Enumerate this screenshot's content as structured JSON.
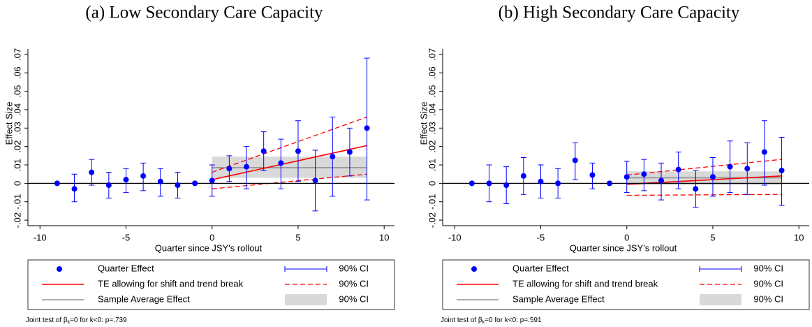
{
  "chart_data": [
    {
      "type": "scatter",
      "title": "(a) Low Secondary Care Capacity",
      "xlabel": "Quarter since JSY's rollout",
      "ylabel": "Effect Size",
      "xlim": [
        -10.7,
        10.6
      ],
      "ylim": [
        -0.023,
        0.073
      ],
      "xticks": [
        -10,
        -5,
        0,
        5,
        10
      ],
      "yticks": [
        {
          "value": -0.02,
          "label": "-.02"
        },
        {
          "value": -0.01,
          "label": "-.01"
        },
        0,
        {
          "value": 0.01,
          "label": ".01"
        },
        {
          "value": 0.02,
          "label": ".02"
        },
        {
          "value": 0.03,
          "label": ".03"
        },
        {
          "value": 0.04,
          "label": ".04"
        },
        {
          "value": 0.05,
          "label": ".05"
        },
        {
          "value": 0.06,
          "label": ".06"
        },
        {
          "value": 0.07,
          "label": ".07"
        }
      ],
      "hline": 0,
      "series": [
        {
          "name": "Quarter Effect",
          "kind": "points",
          "color": "#0000ff",
          "x": [
            -9,
            -8,
            -7,
            -6,
            -5,
            -4,
            -3,
            -2,
            -1,
            0,
            1,
            2,
            3,
            4,
            5,
            6,
            7,
            8,
            9
          ],
          "values": [
            0,
            -0.003,
            0.006,
            -0.001,
            0.002,
            0.004,
            0.001,
            -0.001,
            0,
            0.0015,
            0.008,
            0.009,
            0.0175,
            0.011,
            0.0175,
            0.0015,
            0.0145,
            0.017,
            0.03
          ]
        },
        {
          "name": "90% CI",
          "kind": "errorbar",
          "color": "#0000ff",
          "x": [
            -9,
            -8,
            -7,
            -6,
            -5,
            -4,
            -3,
            -2,
            -1,
            0,
            1,
            2,
            3,
            4,
            5,
            6,
            7,
            8,
            9
          ],
          "low": [
            null,
            -0.01,
            -0.001,
            -0.008,
            -0.005,
            -0.004,
            -0.007,
            -0.008,
            null,
            -0.007,
            0.001,
            -0.003,
            0.007,
            -0.003,
            0.001,
            -0.015,
            -0.007,
            0.004,
            -0.009
          ],
          "high": [
            null,
            0.005,
            0.013,
            0.006,
            0.008,
            0.011,
            0.008,
            0.006,
            null,
            0.01,
            0.015,
            0.02,
            0.028,
            0.024,
            0.034,
            0.018,
            0.036,
            0.03,
            0.068
          ]
        },
        {
          "name": "TE allowing for shift and trend break",
          "kind": "line",
          "color": "#ff0000",
          "x": [
            0,
            9
          ],
          "values": [
            0.002,
            0.0205
          ]
        },
        {
          "name": "90% CI",
          "kind": "dashband",
          "color": "#ff0000",
          "x": [
            0,
            9
          ],
          "low": [
            -0.003,
            0.005
          ],
          "high": [
            0.006,
            0.036
          ]
        },
        {
          "name": "Sample Average Effect",
          "kind": "line",
          "color": "#909090",
          "x": [
            0,
            9
          ],
          "values": [
            0.0085,
            0.0085
          ]
        },
        {
          "name": "90% CI",
          "kind": "band",
          "color": "#d9d9d9",
          "x": [
            0,
            9
          ],
          "low": [
            0.003,
            0.003
          ],
          "high": [
            0.0145,
            0.0145
          ]
        }
      ],
      "note": [
        "Joint test of β",
        "k",
        "=0 for k<0: p=.739"
      ]
    },
    {
      "type": "scatter",
      "title": "(b) High Secondary Care Capacity",
      "xlabel": "Quarter since JSY's rollout",
      "ylabel": "Effect Size",
      "xlim": [
        -10.7,
        10.6
      ],
      "ylim": [
        -0.023,
        0.073
      ],
      "xticks": [
        -10,
        -5,
        0,
        5,
        10
      ],
      "yticks": [
        {
          "value": -0.02,
          "label": "-.02"
        },
        {
          "value": -0.01,
          "label": "-.01"
        },
        0,
        {
          "value": 0.01,
          "label": ".01"
        },
        {
          "value": 0.02,
          "label": ".02"
        },
        {
          "value": 0.03,
          "label": ".03"
        },
        {
          "value": 0.04,
          "label": ".04"
        },
        {
          "value": 0.05,
          "label": ".05"
        },
        {
          "value": 0.06,
          "label": ".06"
        },
        {
          "value": 0.07,
          "label": ".07"
        }
      ],
      "hline": 0,
      "series": [
        {
          "name": "Quarter Effect",
          "kind": "points",
          "color": "#0000ff",
          "x": [
            -9,
            -8,
            -7,
            -6,
            -5,
            -4,
            -3,
            -2,
            -1,
            0,
            1,
            2,
            3,
            4,
            5,
            6,
            7,
            8,
            9
          ],
          "values": [
            0,
            0,
            -0.001,
            0.004,
            0.001,
            0,
            0.0125,
            0.0045,
            0,
            0.0035,
            0.005,
            0.0015,
            0.0075,
            -0.003,
            0.0035,
            0.009,
            0.008,
            0.017,
            0.007
          ]
        },
        {
          "name": "90% CI",
          "kind": "errorbar",
          "color": "#0000ff",
          "x": [
            -9,
            -8,
            -7,
            -6,
            -5,
            -4,
            -3,
            -2,
            -1,
            0,
            1,
            2,
            3,
            4,
            5,
            6,
            7,
            8,
            9
          ],
          "low": [
            null,
            -0.01,
            -0.011,
            -0.006,
            -0.008,
            -0.008,
            0.002,
            -0.003,
            null,
            -0.005,
            -0.004,
            -0.009,
            -0.003,
            -0.013,
            -0.007,
            -0.005,
            -0.006,
            -0.001,
            -0.012
          ],
          "high": [
            null,
            0.01,
            0.009,
            0.014,
            0.01,
            0.008,
            0.022,
            0.011,
            null,
            0.012,
            0.013,
            0.011,
            0.017,
            0.007,
            0.014,
            0.023,
            0.022,
            0.034,
            0.025
          ]
        },
        {
          "name": "TE allowing for shift and trend break",
          "kind": "line",
          "color": "#ff0000",
          "x": [
            0,
            9
          ],
          "values": [
            -0.0005,
            0.004
          ]
        },
        {
          "name": "90% CI",
          "kind": "dashband",
          "color": "#ff0000",
          "x": [
            0,
            9
          ],
          "low": [
            -0.0065,
            -0.006
          ],
          "high": [
            0.0045,
            0.013
          ]
        },
        {
          "name": "Sample Average Effect",
          "kind": "line",
          "color": "#909090",
          "x": [
            0,
            9
          ],
          "values": [
            0.003,
            0.003
          ]
        },
        {
          "name": "90% CI",
          "kind": "band",
          "color": "#d9d9d9",
          "x": [
            0,
            9
          ],
          "low": [
            -0.001,
            -0.001
          ],
          "high": [
            0.0065,
            0.0065
          ]
        }
      ],
      "note": [
        "Joint test of β",
        "k",
        "=0 for k<0: p=.591"
      ]
    }
  ]
}
